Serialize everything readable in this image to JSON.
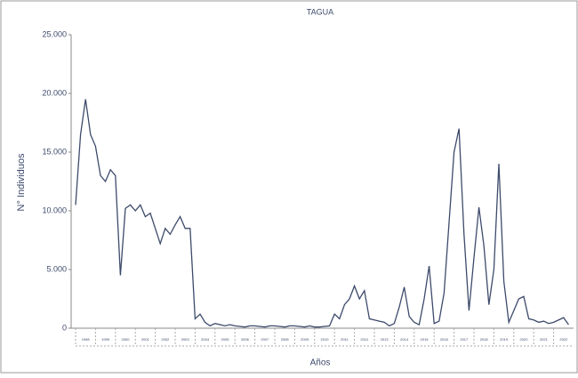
{
  "chart_data": {
    "type": "line",
    "title": "TAGUA",
    "y_label": "N° Individuos",
    "x_label": "Años",
    "xlim": [
      1998,
      2023
    ],
    "xticks": [
      {
        "value": 1998,
        "label": "1998"
      },
      {
        "value": 1999,
        "label": "1999"
      },
      {
        "value": 2000,
        "label": "2000"
      },
      {
        "value": 2001,
        "label": "2001"
      },
      {
        "value": 2002,
        "label": "2002"
      },
      {
        "value": 2003,
        "label": "2003"
      },
      {
        "value": 2004,
        "label": "2004"
      },
      {
        "value": 2005,
        "label": "2005"
      },
      {
        "value": 2006,
        "label": "2006"
      },
      {
        "value": 2007,
        "label": "2007"
      },
      {
        "value": 2008,
        "label": "2008"
      },
      {
        "value": 2009,
        "label": "2009"
      },
      {
        "value": 2010,
        "label": "2010"
      },
      {
        "value": 2011,
        "label": "2011"
      },
      {
        "value": 2012,
        "label": "2012"
      },
      {
        "value": 2013,
        "label": "2013"
      },
      {
        "value": 2014,
        "label": "2014"
      },
      {
        "value": 2015,
        "label": "2015"
      },
      {
        "value": 2016,
        "label": "2016"
      },
      {
        "value": 2017,
        "label": "2017"
      },
      {
        "value": 2018,
        "label": "2018"
      },
      {
        "value": 2019,
        "label": "2019"
      },
      {
        "value": 2020,
        "label": "2020"
      },
      {
        "value": 2021,
        "label": "2021"
      },
      {
        "value": 2022,
        "label": "2022"
      }
    ],
    "ylim": [
      0,
      25000
    ],
    "yticks": [
      0,
      {
        "value": 5000,
        "label": "5.000"
      },
      {
        "value": 10000,
        "label": "10.000"
      },
      {
        "value": 15000,
        "label": "15.000"
      },
      {
        "value": 20000,
        "label": "20.000"
      },
      {
        "value": 25000,
        "label": "25.000"
      }
    ],
    "x": [
      1998,
      1998.25,
      1998.5,
      1998.75,
      1999,
      1999.25,
      1999.5,
      1999.75,
      2000,
      2000.25,
      2000.5,
      2000.75,
      2001,
      2001.25,
      2001.5,
      2001.75,
      2002,
      2002.25,
      2002.5,
      2002.75,
      2003,
      2003.25,
      2003.5,
      2003.75,
      2004,
      2004.25,
      2004.5,
      2004.75,
      2005,
      2005.25,
      2005.5,
      2005.75,
      2006,
      2006.25,
      2006.5,
      2006.75,
      2007,
      2007.25,
      2007.5,
      2007.75,
      2008,
      2008.25,
      2008.5,
      2008.75,
      2009,
      2009.25,
      2009.5,
      2009.75,
      2010,
      2010.25,
      2010.5,
      2010.75,
      2011,
      2011.25,
      2011.5,
      2011.75,
      2012,
      2012.25,
      2012.5,
      2012.75,
      2013,
      2013.25,
      2013.5,
      2013.75,
      2014,
      2014.25,
      2014.5,
      2014.75,
      2015,
      2015.25,
      2015.5,
      2015.75,
      2016,
      2016.25,
      2016.5,
      2016.75,
      2017,
      2017.25,
      2017.5,
      2017.75,
      2018,
      2018.25,
      2018.5,
      2018.75,
      2019,
      2019.25,
      2019.5,
      2019.75,
      2020,
      2020.25,
      2020.5,
      2020.75,
      2021,
      2021.25,
      2021.5,
      2021.75,
      2022,
      2022.25,
      2022.5,
      2022.75
    ],
    "series": [
      {
        "name": "TAGUA",
        "color": "#3d4a6b",
        "values": [
          10500,
          16500,
          19500,
          16500,
          15500,
          13000,
          12500,
          13500,
          13000,
          4500,
          10200,
          10500,
          10000,
          10500,
          9500,
          9800,
          8500,
          7200,
          8500,
          8000,
          8800,
          9500,
          8500,
          8500,
          800,
          1200,
          500,
          200,
          400,
          300,
          200,
          300,
          200,
          150,
          100,
          200,
          200,
          150,
          100,
          200,
          200,
          150,
          100,
          200,
          200,
          150,
          100,
          200,
          100,
          100,
          150,
          200,
          1200,
          800,
          2000,
          2500,
          3600,
          2500,
          3200,
          800,
          700,
          600,
          500,
          200,
          400,
          1800,
          3500,
          1000,
          500,
          300,
          2500,
          5300,
          400,
          600,
          3000,
          9000,
          15000,
          17000,
          8000,
          1500,
          6000,
          10300,
          7000,
          2000,
          5000,
          14000,
          4000,
          500,
          1500,
          2500,
          2700,
          800,
          700,
          500,
          600,
          400,
          500,
          700,
          900,
          300
        ]
      }
    ]
  }
}
